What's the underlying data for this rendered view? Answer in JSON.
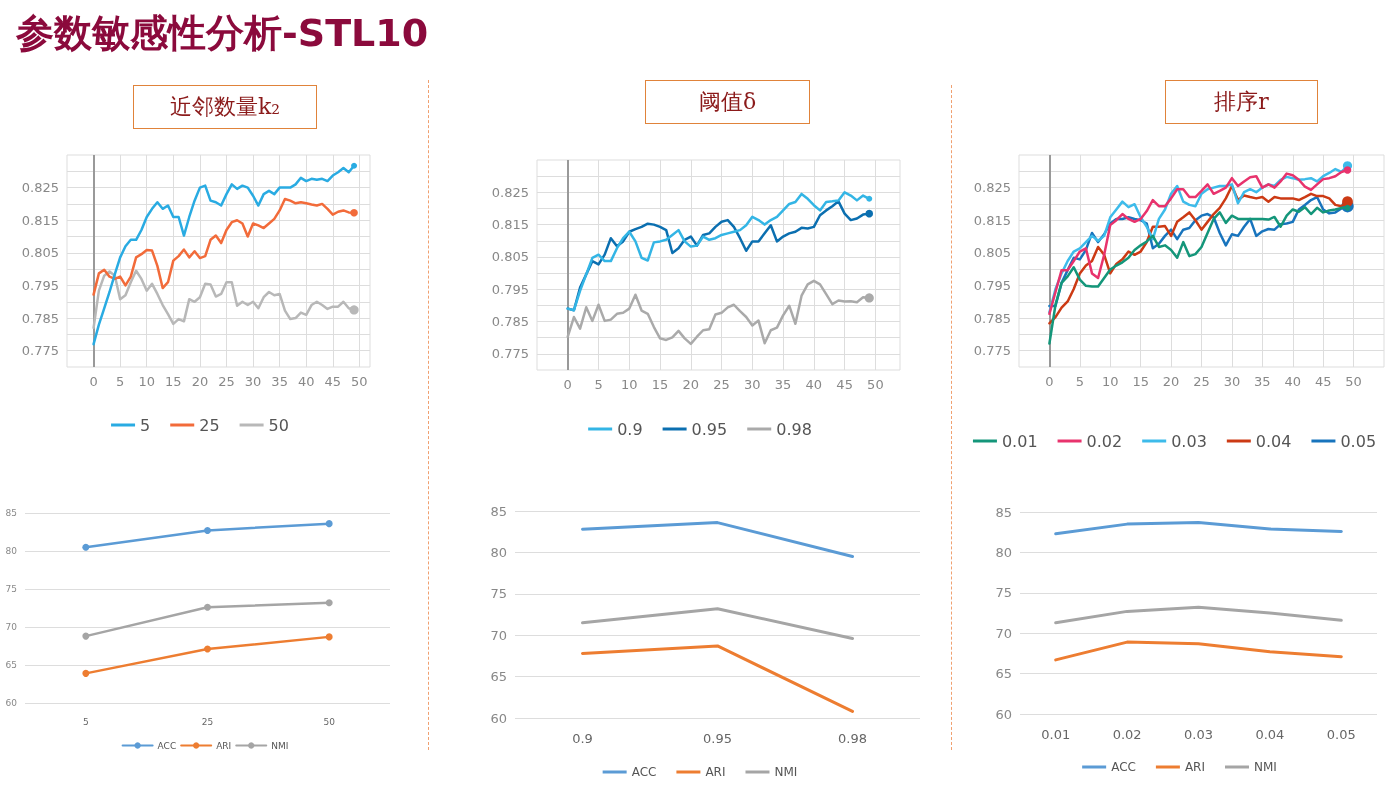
{
  "chart_data": [
    {
      "type": "other",
      "title": "参数敏感性分析-STL10"
    },
    {
      "type": "line",
      "title": "近邻数量k₂",
      "x": [
        0,
        1,
        2,
        3,
        4,
        5,
        6,
        7,
        8,
        9,
        10,
        11,
        12,
        13,
        14,
        15,
        16,
        17,
        18,
        19,
        20,
        21,
        22,
        23,
        24,
        25,
        26,
        27,
        28,
        29,
        30,
        31,
        32,
        33,
        34,
        35,
        36,
        37,
        38,
        39,
        40,
        41,
        42,
        43,
        44,
        45,
        46,
        47,
        48,
        49
      ],
      "xlim": [
        -5,
        52
      ],
      "xticks": [
        0,
        5,
        10,
        15,
        20,
        25,
        30,
        35,
        40,
        45,
        50
      ],
      "ylim": [
        0.77,
        0.835
      ],
      "yticks": [
        0.775,
        {
          "value": 0.78,
          "label": null
        },
        0.785,
        {
          "value": 0.79,
          "label": null
        },
        0.795,
        {
          "value": 0.8,
          "label": null
        },
        0.805,
        {
          "value": 0.81,
          "label": null
        },
        0.815,
        {
          "value": 0.82,
          "label": null
        },
        0.825,
        {
          "value": 0.83,
          "label": null
        }
      ],
      "grid": true,
      "legend": "bottom",
      "ref_lines": [
        {
          "axis": "x",
          "value": 0,
          "color": "#999999"
        }
      ],
      "series": [
        {
          "name": "5",
          "color": "#29abe2",
          "values": [
            0.777,
            0.783,
            0.788,
            0.793,
            0.7985,
            0.8036,
            0.807,
            0.809,
            0.809,
            0.812,
            0.816,
            0.8185,
            0.8205,
            0.8185,
            0.8195,
            0.816,
            0.816,
            0.8103,
            0.816,
            0.821,
            0.825,
            0.8256,
            0.821,
            0.8205,
            0.8195,
            0.823,
            0.826,
            0.8246,
            0.8256,
            0.825,
            0.8225,
            0.8195,
            0.823,
            0.824,
            0.823,
            0.825,
            0.825,
            0.825,
            0.826,
            0.828,
            0.827,
            0.8277,
            0.8274,
            0.8277,
            0.827,
            0.8287,
            0.8297,
            0.831,
            0.8297,
            0.8317
          ]
        },
        {
          "name": "25",
          "color": "#f26b3a",
          "values": [
            0.7922,
            0.7987,
            0.7998,
            0.7977,
            0.797,
            0.7977,
            0.795,
            0.7977,
            0.8036,
            0.8046,
            0.8059,
            0.8057,
            0.801,
            0.7942,
            0.796,
            0.8026,
            0.804,
            0.806,
            0.8036,
            0.8055,
            0.8034,
            0.804,
            0.809,
            0.8103,
            0.808,
            0.812,
            0.8144,
            0.815,
            0.814,
            0.81,
            0.814,
            0.8134,
            0.8126,
            0.814,
            0.8154,
            0.818,
            0.8215,
            0.821,
            0.8202,
            0.8205,
            0.8202,
            0.8198,
            0.8195,
            0.82,
            0.8185,
            0.8167,
            0.8176,
            0.818,
            0.8174,
            0.8173
          ]
        },
        {
          "name": "50",
          "color": "#b8b8b8",
          "values": [
            0.782,
            0.7934,
            0.798,
            0.7993,
            0.798,
            0.7908,
            0.792,
            0.796,
            0.7995,
            0.797,
            0.7934,
            0.7955,
            0.7924,
            0.789,
            0.7862,
            0.7832,
            0.7847,
            0.784,
            0.7908,
            0.79,
            0.7914,
            0.7955,
            0.7953,
            0.7916,
            0.7924,
            0.796,
            0.796,
            0.7888,
            0.79,
            0.789,
            0.79,
            0.788,
            0.7914,
            0.793,
            0.792,
            0.7924,
            0.7873,
            0.7847,
            0.785,
            0.7867,
            0.786,
            0.789,
            0.79,
            0.789,
            0.7878,
            0.7885,
            0.7885,
            0.79,
            0.788,
            0.7875
          ]
        }
      ]
    },
    {
      "type": "line",
      "title": "阈值δ",
      "x": [
        0,
        1,
        2,
        3,
        4,
        5,
        6,
        7,
        8,
        9,
        10,
        11,
        12,
        13,
        14,
        15,
        16,
        17,
        18,
        19,
        20,
        21,
        22,
        23,
        24,
        25,
        26,
        27,
        28,
        29,
        30,
        31,
        32,
        33,
        34,
        35,
        36,
        37,
        38,
        39,
        40,
        41,
        42,
        43,
        44,
        45,
        46,
        47,
        48,
        49
      ],
      "xlim": [
        -5,
        54
      ],
      "xticks": [
        0,
        5,
        10,
        15,
        20,
        25,
        30,
        35,
        40,
        45,
        50
      ],
      "ylim": [
        0.77,
        0.835
      ],
      "yticks": [
        0.775,
        {
          "value": 0.78,
          "label": null
        },
        0.785,
        {
          "value": 0.79,
          "label": null
        },
        0.795,
        {
          "value": 0.8,
          "label": null
        },
        0.805,
        {
          "value": 0.81,
          "label": null
        },
        0.815,
        {
          "value": 0.82,
          "label": null
        },
        0.825,
        {
          "value": 0.83,
          "label": null
        }
      ],
      "grid": true,
      "legend": "bottom",
      "ref_lines": [
        {
          "axis": "x",
          "value": 0,
          "color": "#999999"
        }
      ],
      "series": [
        {
          "name": "0.9",
          "color": "#33b5e5",
          "values": [
            0.789,
            0.7885,
            0.7945,
            0.7996,
            0.8047,
            0.8057,
            0.8037,
            0.8037,
            0.8077,
            0.8108,
            0.8128,
            0.8098,
            0.8047,
            0.8039,
            0.8095,
            0.8098,
            0.8103,
            0.8118,
            0.8133,
            0.8098,
            0.8082,
            0.8085,
            0.8113,
            0.8103,
            0.8108,
            0.8118,
            0.8123,
            0.8128,
            0.8133,
            0.8148,
            0.8174,
            0.8164,
            0.815,
            0.8164,
            0.8174,
            0.8194,
            0.8214,
            0.822,
            0.8245,
            0.823,
            0.821,
            0.8194,
            0.822,
            0.8222,
            0.8225,
            0.825,
            0.824,
            0.8225,
            0.824,
            0.823
          ]
        },
        {
          "name": "0.95",
          "color": "#0b6fb0",
          "values": [
            0.789,
            0.7885,
            0.7955,
            0.7996,
            0.8037,
            0.8027,
            0.8057,
            0.8108,
            0.8083,
            0.8098,
            0.8128,
            0.8136,
            0.8143,
            0.8153,
            0.815,
            0.8143,
            0.8133,
            0.8062,
            0.8077,
            0.8103,
            0.8113,
            0.8085,
            0.8118,
            0.8123,
            0.8143,
            0.8159,
            0.8164,
            0.8143,
            0.8108,
            0.8069,
            0.8098,
            0.8098,
            0.8123,
            0.8148,
            0.8098,
            0.8113,
            0.8123,
            0.8128,
            0.814,
            0.8138,
            0.8143,
            0.8179,
            0.8194,
            0.8207,
            0.8222,
            0.8184,
            0.8164,
            0.8169,
            0.8181,
            0.8184
          ]
        },
        {
          "name": "0.98",
          "color": "#aaaaaa",
          "values": [
            0.7803,
            0.7864,
            0.7828,
            0.7894,
            0.7852,
            0.7902,
            0.7852,
            0.7856,
            0.7874,
            0.7877,
            0.789,
            0.7933,
            0.7884,
            0.7874,
            0.7833,
            0.7798,
            0.7793,
            0.7801,
            0.7821,
            0.7798,
            0.7781,
            0.7803,
            0.7823,
            0.7826,
            0.7872,
            0.7877,
            0.7894,
            0.7902,
            0.7882,
            0.7864,
            0.7838,
            0.7853,
            0.7783,
            0.7823,
            0.7831,
            0.7869,
            0.7899,
            0.7843,
            0.793,
            0.7965,
            0.7976,
            0.7965,
            0.7935,
            0.7904,
            0.7915,
            0.7912,
            0.7913,
            0.791,
            0.7925,
            0.7923
          ]
        }
      ]
    },
    {
      "type": "line",
      "title": "排序r",
      "x": [
        0,
        1,
        2,
        3,
        4,
        5,
        6,
        7,
        8,
        9,
        10,
        11,
        12,
        13,
        14,
        15,
        16,
        17,
        18,
        19,
        20,
        21,
        22,
        23,
        24,
        25,
        26,
        27,
        28,
        29,
        30,
        31,
        32,
        33,
        34,
        35,
        36,
        37,
        38,
        39,
        40,
        41,
        42,
        43,
        44,
        45,
        46,
        47,
        48,
        49
      ],
      "xlim": [
        -5,
        55
      ],
      "xticks": [
        0,
        5,
        10,
        15,
        20,
        25,
        30,
        35,
        40,
        45,
        50
      ],
      "ylim": [
        0.77,
        0.835
      ],
      "yticks": [
        0.775,
        {
          "value": 0.78,
          "label": null
        },
        0.785,
        {
          "value": 0.79,
          "label": null
        },
        0.795,
        {
          "value": 0.8,
          "label": null
        },
        0.805,
        {
          "value": 0.81,
          "label": null
        },
        0.815,
        {
          "value": 0.82,
          "label": null
        },
        0.825,
        {
          "value": 0.83,
          "label": null
        }
      ],
      "grid": true,
      "legend": "bottom",
      "ref_lines": [
        {
          "axis": "x",
          "value": 0,
          "color": "#999999"
        }
      ],
      "series": [
        {
          "name": "0.01",
          "color": "#14967a",
          "values": [
            0.7772,
            0.7891,
            0.7958,
            0.7978,
            0.8006,
            0.7968,
            0.7949,
            0.7947,
            0.7947,
            0.7973,
            0.7999,
            0.8011,
            0.8021,
            0.8035,
            0.8059,
            0.8073,
            0.8085,
            0.8102,
            0.8068,
            0.8073,
            0.8059,
            0.8035,
            0.8083,
            0.804,
            0.8046,
            0.8068,
            0.8111,
            0.8154,
            0.8174,
            0.8142,
            0.8164,
            0.8154,
            0.8154,
            0.8154,
            0.8154,
            0.8154,
            0.8152,
            0.816,
            0.813,
            0.8164,
            0.8183,
            0.8176,
            0.819,
            0.8169,
            0.8188,
            0.8174,
            0.818,
            0.8183,
            0.8188,
            0.8188
          ]
        },
        {
          "name": "0.02",
          "color": "#e8336d",
          "values": [
            0.7863,
            0.793,
            0.7997,
            0.7997,
            0.8025,
            0.8054,
            0.8064,
            0.7987,
            0.7973,
            0.8044,
            0.8135,
            0.815,
            0.8169,
            0.8154,
            0.8145,
            0.8154,
            0.8178,
            0.8212,
            0.8193,
            0.8193,
            0.8217,
            0.8245,
            0.8245,
            0.8221,
            0.8221,
            0.824,
            0.826,
            0.8231,
            0.824,
            0.825,
            0.8279,
            0.8255,
            0.8269,
            0.8282,
            0.8285,
            0.825,
            0.826,
            0.825,
            0.8269,
            0.8293,
            0.8288,
            0.8274,
            0.8253,
            0.8243,
            0.826,
            0.8276,
            0.8279,
            0.8285,
            0.8298,
            0.8304
          ]
        },
        {
          "name": "0.03",
          "color": "#3dbbea",
          "values": [
            0.7868,
            0.7939,
            0.7987,
            0.8025,
            0.8054,
            0.8064,
            0.8083,
            0.8102,
            0.8087,
            0.8102,
            0.8159,
            0.8183,
            0.8207,
            0.819,
            0.8199,
            0.8159,
            0.813,
            0.8092,
            0.8154,
            0.8183,
            0.8231,
            0.8255,
            0.8207,
            0.8197,
            0.8193,
            0.8231,
            0.8245,
            0.825,
            0.8255,
            0.8255,
            0.826,
            0.8202,
            0.8236,
            0.8245,
            0.8236,
            0.825,
            0.826,
            0.8255,
            0.8274,
            0.8283,
            0.8279,
            0.8274,
            0.8276,
            0.8279,
            0.8269,
            0.8285,
            0.8295,
            0.8307,
            0.8298,
            0.8317
          ]
        },
        {
          "name": "0.04",
          "color": "#cc3a14",
          "values": [
            0.7834,
            0.7853,
            0.7882,
            0.7901,
            0.7939,
            0.7987,
            0.8011,
            0.8025,
            0.8068,
            0.8044,
            0.7987,
            0.8016,
            0.803,
            0.8054,
            0.8044,
            0.8054,
            0.8083,
            0.813,
            0.813,
            0.8132,
            0.8102,
            0.8145,
            0.8159,
            0.8174,
            0.815,
            0.8121,
            0.8145,
            0.8169,
            0.8188,
            0.8217,
            0.8255,
            0.8212,
            0.8226,
            0.8221,
            0.8217,
            0.8221,
            0.8207,
            0.8221,
            0.8217,
            0.8217,
            0.8217,
            0.8212,
            0.8221,
            0.8231,
            0.8224,
            0.8224,
            0.8217,
            0.8197,
            0.8193,
            0.8207
          ]
        },
        {
          "name": "0.05",
          "color": "#1874bd",
          "values": [
            0.7887,
            0.7887,
            0.7958,
            0.7997,
            0.8035,
            0.803,
            0.8059,
            0.8111,
            0.8083,
            0.8107,
            0.814,
            0.8154,
            0.8154,
            0.8159,
            0.8154,
            0.815,
            0.814,
            0.8064,
            0.8078,
            0.8102,
            0.8121,
            0.8092,
            0.8121,
            0.8126,
            0.815,
            0.8164,
            0.8169,
            0.8159,
            0.8111,
            0.8073,
            0.8107,
            0.8102,
            0.813,
            0.8154,
            0.8102,
            0.8116,
            0.8123,
            0.8121,
            0.8138,
            0.814,
            0.8145,
            0.8183,
            0.8197,
            0.8212,
            0.8221,
            0.8183,
            0.8171,
            0.8174,
            0.8186,
            0.8193
          ]
        }
      ]
    },
    {
      "type": "line",
      "categories": [
        "5",
        "25",
        "50"
      ],
      "ylim": [
        60,
        85
      ],
      "yticks": [
        60,
        65,
        70,
        75,
        80,
        85
      ],
      "grid": "y",
      "legend": "bottom",
      "marker": "circle",
      "series": [
        {
          "name": "ACC",
          "color": "#5b9bd5",
          "values": [
            80.5,
            82.7,
            83.6
          ]
        },
        {
          "name": "ARI",
          "color": "#ed7d31",
          "values": [
            63.9,
            67.1,
            68.7
          ]
        },
        {
          "name": "NMI",
          "color": "#a5a5a5",
          "values": [
            68.8,
            72.6,
            73.2
          ]
        }
      ]
    },
    {
      "type": "line",
      "categories": [
        "0.9",
        "0.95",
        "0.98"
      ],
      "ylim": [
        60,
        85
      ],
      "yticks": [
        60,
        65,
        70,
        75,
        80,
        85
      ],
      "grid": "y",
      "legend": "bottom",
      "series": [
        {
          "name": "ACC",
          "color": "#5b9bd5",
          "values": [
            82.8,
            83.6,
            79.5
          ]
        },
        {
          "name": "ARI",
          "color": "#ed7d31",
          "values": [
            67.8,
            68.7,
            60.8
          ]
        },
        {
          "name": "NMI",
          "color": "#a5a5a5",
          "values": [
            71.5,
            73.2,
            69.6
          ]
        }
      ]
    },
    {
      "type": "line",
      "categories": [
        "0.01",
        "0.02",
        "0.03",
        "0.04",
        "0.05"
      ],
      "ylim": [
        60,
        85
      ],
      "yticks": [
        60,
        65,
        70,
        75,
        80,
        85
      ],
      "grid": "y",
      "legend": "bottom",
      "series": [
        {
          "name": "ACC",
          "color": "#5b9bd5",
          "values": [
            82.3,
            83.5,
            83.7,
            82.9,
            82.6
          ]
        },
        {
          "name": "ARI",
          "color": "#ed7d31",
          "values": [
            66.7,
            68.9,
            68.7,
            67.7,
            67.1
          ]
        },
        {
          "name": "NMI",
          "color": "#a5a5a5",
          "values": [
            71.3,
            72.7,
            73.2,
            72.5,
            71.6
          ]
        }
      ]
    }
  ]
}
